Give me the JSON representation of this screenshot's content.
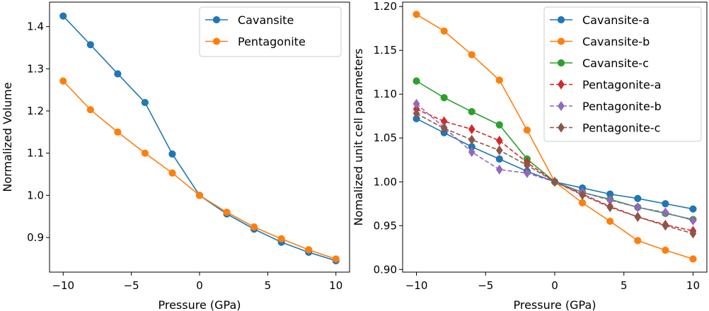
{
  "colors": {
    "cavansite_a": "#1f77b4",
    "cavansite_b": "#ff7f0e",
    "cavansite_c": "#2ca02c",
    "pentagonite_a": "#d62728",
    "pentagonite_b": "#9467bd",
    "pentagonite_c": "#8c564b"
  },
  "chart_data": [
    {
      "type": "line",
      "title": "",
      "xlabel": "Pressure (GPa)",
      "ylabel": "Normalized Volume",
      "xlim": [
        -11,
        11
      ],
      "ylim": [
        0.818,
        1.458
      ],
      "xticks": [
        -10,
        -5,
        0,
        5,
        10
      ],
      "xtick_labels": [
        "−10",
        "−5",
        "0",
        "5",
        "10"
      ],
      "yticks": [
        0.9,
        1.0,
        1.1,
        1.2,
        1.3,
        1.4
      ],
      "ytick_labels": [
        "0.9",
        "1.0",
        "1.1",
        "1.2",
        "1.3",
        "1.4"
      ],
      "grid": false,
      "legend_position": "top-right",
      "x": [
        -10,
        -8,
        -6,
        -4,
        -2,
        0,
        2,
        4,
        6,
        8,
        10
      ],
      "series": [
        {
          "name": "Cavansite",
          "color_key": "cavansite_a",
          "marker": "circle",
          "dashed": false,
          "values": [
            1.425,
            1.357,
            1.288,
            1.22,
            1.098,
            1.0,
            0.956,
            0.92,
            0.889,
            0.865,
            0.845
          ]
        },
        {
          "name": "Pentagonite",
          "color_key": "cavansite_b",
          "marker": "circle",
          "dashed": false,
          "values": [
            1.271,
            1.203,
            1.15,
            1.1,
            1.053,
            1.0,
            0.96,
            0.925,
            0.897,
            0.871,
            0.849
          ]
        }
      ]
    },
    {
      "type": "line",
      "title": "",
      "xlabel": "Pressure (GPa)",
      "ylabel": "Nomalized unit cell parameters",
      "xlim": [
        -11,
        11
      ],
      "ylim": [
        0.897,
        1.205
      ],
      "xticks": [
        -10,
        -5,
        0,
        5,
        10
      ],
      "xtick_labels": [
        "−10",
        "−5",
        "0",
        "5",
        "10"
      ],
      "yticks": [
        0.9,
        0.95,
        1.0,
        1.05,
        1.1,
        1.15,
        1.2
      ],
      "ytick_labels": [
        "0.90",
        "0.95",
        "1.00",
        "1.05",
        "1.10",
        "1.15",
        "1.20"
      ],
      "grid": false,
      "legend_position": "top-right",
      "x": [
        -10,
        -8,
        -6,
        -4,
        -2,
        0,
        2,
        4,
        6,
        8,
        10
      ],
      "series": [
        {
          "name": "Cavansite-a",
          "color_key": "cavansite_a",
          "marker": "circle",
          "dashed": false,
          "values": [
            1.072,
            1.056,
            1.04,
            1.026,
            1.012,
            1.0,
            0.993,
            0.986,
            0.981,
            0.975,
            0.969
          ]
        },
        {
          "name": "Cavansite-b",
          "color_key": "cavansite_b",
          "marker": "circle",
          "dashed": false,
          "values": [
            1.191,
            1.172,
            1.145,
            1.116,
            1.059,
            1.0,
            0.976,
            0.955,
            0.933,
            0.922,
            0.912
          ]
        },
        {
          "name": "Cavansite-c",
          "color_key": "cavansite_c",
          "marker": "circle",
          "dashed": false,
          "values": [
            1.115,
            1.096,
            1.08,
            1.065,
            1.026,
            1.0,
            0.988,
            0.98,
            0.971,
            0.964,
            0.957
          ]
        },
        {
          "name": "Pentagonite-a",
          "color_key": "pentagonite_a",
          "marker": "diamond",
          "dashed": true,
          "values": [
            1.083,
            1.069,
            1.06,
            1.047,
            1.022,
            1.0,
            0.986,
            0.972,
            0.96,
            0.951,
            0.944
          ]
        },
        {
          "name": "Pentagonite-b",
          "color_key": "pentagonite_b",
          "marker": "diamond",
          "dashed": true,
          "values": [
            1.089,
            1.062,
            1.034,
            1.014,
            1.01,
            1.0,
            0.988,
            0.979,
            0.971,
            0.965,
            0.956
          ]
        },
        {
          "name": "Pentagonite-c",
          "color_key": "pentagonite_c",
          "marker": "diamond",
          "dashed": true,
          "values": [
            1.078,
            1.061,
            1.048,
            1.036,
            1.019,
            1.0,
            0.985,
            0.971,
            0.96,
            0.95,
            0.941
          ]
        }
      ]
    }
  ]
}
